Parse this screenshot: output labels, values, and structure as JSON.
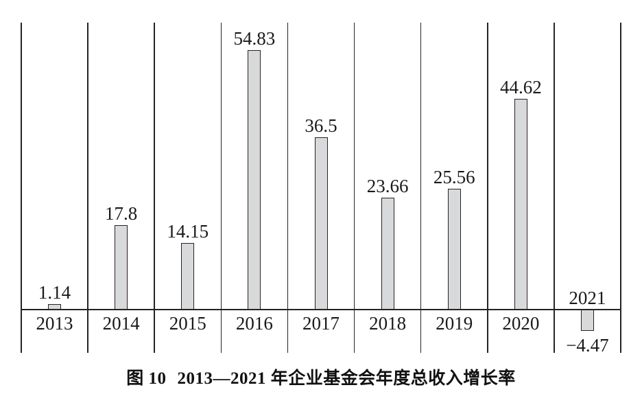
{
  "chart_data": {
    "type": "bar",
    "figure_label": "图 10",
    "title": "2013—2021 年企业基金会年度总收入增长率",
    "categories": [
      "2013",
      "2014",
      "2015",
      "2016",
      "2017",
      "2018",
      "2019",
      "2020",
      "2021"
    ],
    "values": [
      1.14,
      17.8,
      14.15,
      54.83,
      36.5,
      23.66,
      25.56,
      44.62,
      -4.47
    ],
    "value_labels": [
      "1.14",
      "17.8",
      "14.15",
      "54.83",
      "36.5",
      "23.66",
      "25.56",
      "44.62",
      "−4.47"
    ],
    "xlabel": "",
    "ylabel": "",
    "ylim": [
      -9,
      61
    ],
    "baseline": 0,
    "grid": "vertical column separators only, no horizontal gridlines, no y-axis ticks",
    "legend": "none",
    "colors": {
      "bar_fill": "#d8d9da",
      "bar_border": "#262223",
      "line": "#262223",
      "text": "#1c1819",
      "background": "#ffffff"
    }
  }
}
